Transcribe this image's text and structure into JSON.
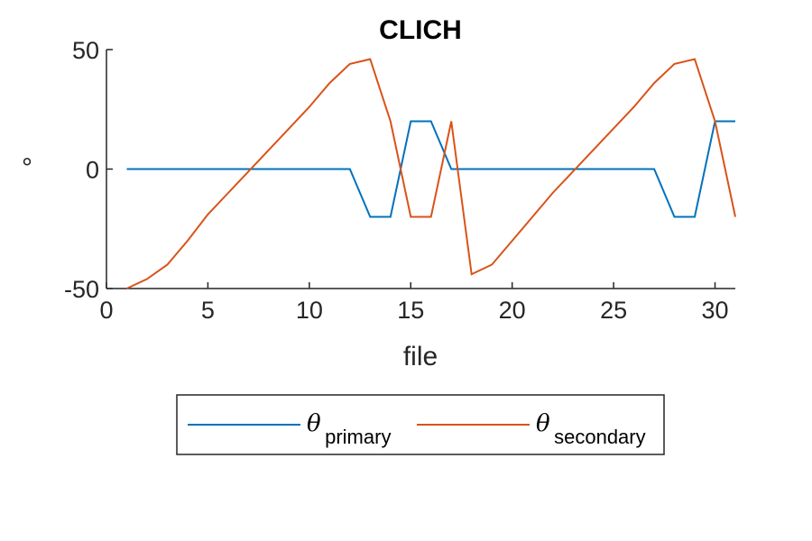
{
  "chart_data": {
    "type": "line",
    "title": "CLICH",
    "xlabel": "file",
    "ylabel": "°",
    "xlim": [
      0,
      31
    ],
    "ylim": [
      -50,
      50
    ],
    "xticks": [
      "0",
      "5",
      "10",
      "15",
      "20",
      "25",
      "30"
    ],
    "yticks": [
      "-50",
      "0",
      "50"
    ],
    "grid": false,
    "legend": {
      "placement": "bottom-outside",
      "orientation": "horizontal"
    },
    "series": [
      {
        "name": "θ primary",
        "symbol": "θ",
        "subscript": "primary",
        "color": "#0072BD",
        "x": [
          1,
          2,
          3,
          4,
          5,
          6,
          7,
          8,
          9,
          10,
          11,
          12,
          13,
          14,
          15,
          16,
          17,
          18,
          19,
          20,
          21,
          22,
          23,
          24,
          25,
          26,
          27,
          28,
          29,
          30,
          31
        ],
        "y": [
          0,
          0,
          0,
          0,
          0,
          0,
          0,
          0,
          0,
          0,
          0,
          0,
          -20,
          -20,
          20,
          20,
          0,
          0,
          0,
          0,
          0,
          0,
          0,
          0,
          0,
          0,
          0,
          -20,
          -20,
          20,
          20
        ]
      },
      {
        "name": "θ secondary",
        "symbol": "θ",
        "subscript": "secondary",
        "color": "#D95319",
        "x": [
          1,
          2,
          3,
          4,
          5,
          6,
          7,
          8,
          9,
          10,
          11,
          12,
          13,
          14,
          15,
          16,
          17,
          18,
          19,
          20,
          21,
          22,
          23,
          24,
          25,
          26,
          27,
          28,
          29,
          30,
          31
        ],
        "y": [
          -50,
          -46,
          -40,
          -30,
          -19,
          -10,
          -1,
          8,
          17,
          26,
          36,
          44,
          46,
          20,
          -20,
          -20,
          20,
          -44,
          -40,
          -30,
          -20,
          -10,
          -1,
          8,
          17,
          26,
          36,
          44,
          46,
          20,
          -20
        ]
      }
    ]
  }
}
